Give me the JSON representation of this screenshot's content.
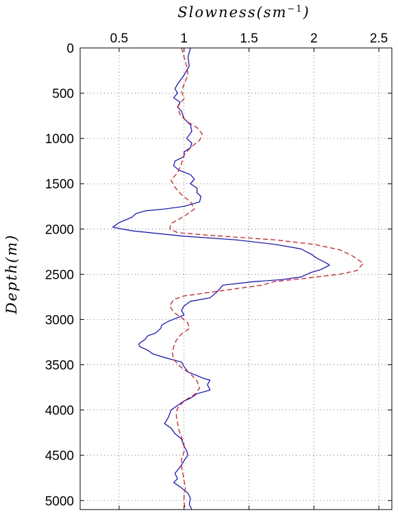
{
  "chart_data": {
    "type": "line",
    "xlabel": "Slowness(sm",
    "xlabel_sup": "−1",
    "xlabel_close": ")",
    "ylabel": "Depth(m)",
    "xlim": [
      0.2,
      2.6
    ],
    "ylim": [
      0,
      5100
    ],
    "y_reversed": true,
    "x_axis_position": "top",
    "grid": true,
    "x_ticks": [
      0.5,
      1,
      1.5,
      2,
      2.5
    ],
    "x_tick_labels": [
      "0.5",
      "1",
      "1.5",
      "2",
      "2.5"
    ],
    "y_ticks": [
      0,
      500,
      1000,
      1500,
      2000,
      2500,
      3000,
      3500,
      4000,
      4500,
      5000
    ],
    "y_tick_labels": [
      "0",
      "500",
      "1000",
      "1500",
      "2000",
      "2500",
      "3000",
      "3500",
      "4000",
      "4500",
      "5000"
    ],
    "series": [
      {
        "color": "#0000ff",
        "style": "solid",
        "points": [
          [
            1.05,
            0
          ],
          [
            1.03,
            100
          ],
          [
            1.04,
            200
          ],
          [
            1.0,
            300
          ],
          [
            0.95,
            400
          ],
          [
            0.93,
            450
          ],
          [
            0.95,
            500
          ],
          [
            0.92,
            550
          ],
          [
            0.97,
            600
          ],
          [
            0.95,
            650
          ],
          [
            0.98,
            700
          ],
          [
            1.0,
            780
          ],
          [
            1.05,
            850
          ],
          [
            1.06,
            920
          ],
          [
            1.02,
            1000
          ],
          [
            1.06,
            1050
          ],
          [
            1.05,
            1100
          ],
          [
            1.0,
            1150
          ],
          [
            1.0,
            1200
          ],
          [
            0.93,
            1250
          ],
          [
            0.92,
            1300
          ],
          [
            0.96,
            1350
          ],
          [
            1.05,
            1400
          ],
          [
            1.08,
            1450
          ],
          [
            1.05,
            1500
          ],
          [
            1.1,
            1550
          ],
          [
            1.1,
            1600
          ],
          [
            1.13,
            1640
          ],
          [
            1.12,
            1700
          ],
          [
            1.0,
            1750
          ],
          [
            0.85,
            1780
          ],
          [
            0.7,
            1800
          ],
          [
            0.63,
            1830
          ],
          [
            0.6,
            1870
          ],
          [
            0.5,
            1930
          ],
          [
            0.45,
            1980
          ],
          [
            0.6,
            2020
          ],
          [
            1.0,
            2080
          ],
          [
            1.4,
            2120
          ],
          [
            1.7,
            2170
          ],
          [
            1.9,
            2220
          ],
          [
            1.98,
            2280
          ],
          [
            2.02,
            2320
          ],
          [
            2.1,
            2380
          ],
          [
            2.12,
            2400
          ],
          [
            2.05,
            2450
          ],
          [
            1.98,
            2480
          ],
          [
            1.9,
            2530
          ],
          [
            1.75,
            2560
          ],
          [
            1.55,
            2580
          ],
          [
            1.3,
            2620
          ],
          [
            1.25,
            2700
          ],
          [
            1.2,
            2760
          ],
          [
            1.05,
            2800
          ],
          [
            1.0,
            2850
          ],
          [
            0.98,
            2900
          ],
          [
            1.0,
            2950
          ],
          [
            0.95,
            2980
          ],
          [
            0.88,
            3020
          ],
          [
            0.83,
            3060
          ],
          [
            0.82,
            3100
          ],
          [
            0.78,
            3150
          ],
          [
            0.72,
            3180
          ],
          [
            0.7,
            3220
          ],
          [
            0.65,
            3270
          ],
          [
            0.66,
            3300
          ],
          [
            0.72,
            3340
          ],
          [
            0.76,
            3380
          ],
          [
            0.85,
            3420
          ],
          [
            0.98,
            3470
          ],
          [
            1.0,
            3520
          ],
          [
            1.03,
            3580
          ],
          [
            1.1,
            3620
          ],
          [
            1.15,
            3650
          ],
          [
            1.2,
            3670
          ],
          [
            1.18,
            3720
          ],
          [
            1.2,
            3780
          ],
          [
            1.1,
            3820
          ],
          [
            1.05,
            3870
          ],
          [
            1.0,
            3900
          ],
          [
            0.95,
            3950
          ],
          [
            0.9,
            4000
          ],
          [
            0.88,
            4080
          ],
          [
            0.85,
            4150
          ],
          [
            0.9,
            4200
          ],
          [
            0.93,
            4260
          ],
          [
            0.98,
            4320
          ],
          [
            1.0,
            4400
          ],
          [
            1.02,
            4450
          ],
          [
            1.03,
            4500
          ],
          [
            1.0,
            4560
          ],
          [
            0.97,
            4630
          ],
          [
            0.93,
            4700
          ],
          [
            0.95,
            4760
          ],
          [
            0.92,
            4800
          ],
          [
            0.98,
            4860
          ],
          [
            1.03,
            4920
          ],
          [
            1.05,
            4980
          ],
          [
            1.04,
            5040
          ],
          [
            1.06,
            5100
          ]
        ]
      },
      {
        "color": "#ff0000",
        "style": "dashed",
        "points": [
          [
            0.98,
            0
          ],
          [
            1.0,
            100
          ],
          [
            1.02,
            200
          ],
          [
            1.03,
            300
          ],
          [
            1.0,
            400
          ],
          [
            0.98,
            480
          ],
          [
            1.0,
            560
          ],
          [
            0.95,
            650
          ],
          [
            0.97,
            740
          ],
          [
            1.03,
            820
          ],
          [
            1.1,
            880
          ],
          [
            1.14,
            950
          ],
          [
            1.12,
            1020
          ],
          [
            1.05,
            1100
          ],
          [
            1.0,
            1180
          ],
          [
            0.98,
            1280
          ],
          [
            0.95,
            1380
          ],
          [
            0.9,
            1460
          ],
          [
            0.93,
            1540
          ],
          [
            0.98,
            1620
          ],
          [
            1.05,
            1700
          ],
          [
            1.08,
            1780
          ],
          [
            1.0,
            1860
          ],
          [
            0.9,
            1940
          ],
          [
            0.89,
            2000
          ],
          [
            0.95,
            2040
          ],
          [
            1.2,
            2070
          ],
          [
            1.7,
            2120
          ],
          [
            2.0,
            2170
          ],
          [
            2.2,
            2230
          ],
          [
            2.3,
            2300
          ],
          [
            2.38,
            2380
          ],
          [
            2.33,
            2460
          ],
          [
            2.2,
            2500
          ],
          [
            1.9,
            2550
          ],
          [
            1.7,
            2580
          ],
          [
            1.6,
            2620
          ],
          [
            1.4,
            2660
          ],
          [
            1.2,
            2700
          ],
          [
            1.0,
            2740
          ],
          [
            0.92,
            2780
          ],
          [
            0.89,
            2850
          ],
          [
            0.92,
            2920
          ],
          [
            0.98,
            2980
          ],
          [
            1.03,
            3040
          ],
          [
            1.04,
            3100
          ],
          [
            0.98,
            3160
          ],
          [
            0.94,
            3230
          ],
          [
            0.92,
            3300
          ],
          [
            0.91,
            3370
          ],
          [
            0.92,
            3440
          ],
          [
            0.97,
            3520
          ],
          [
            1.05,
            3600
          ],
          [
            1.1,
            3680
          ],
          [
            1.12,
            3760
          ],
          [
            1.08,
            3830
          ],
          [
            1.0,
            3900
          ],
          [
            0.95,
            3980
          ],
          [
            0.94,
            4060
          ],
          [
            0.95,
            4140
          ],
          [
            0.96,
            4220
          ],
          [
            0.98,
            4300
          ],
          [
            1.0,
            4380
          ],
          [
            1.0,
            4460
          ],
          [
            0.98,
            4540
          ],
          [
            0.98,
            4620
          ],
          [
            0.99,
            4700
          ],
          [
            1.0,
            4780
          ],
          [
            1.01,
            4860
          ],
          [
            1.0,
            4940
          ],
          [
            1.0,
            5020
          ],
          [
            1.01,
            5100
          ]
        ]
      }
    ]
  }
}
